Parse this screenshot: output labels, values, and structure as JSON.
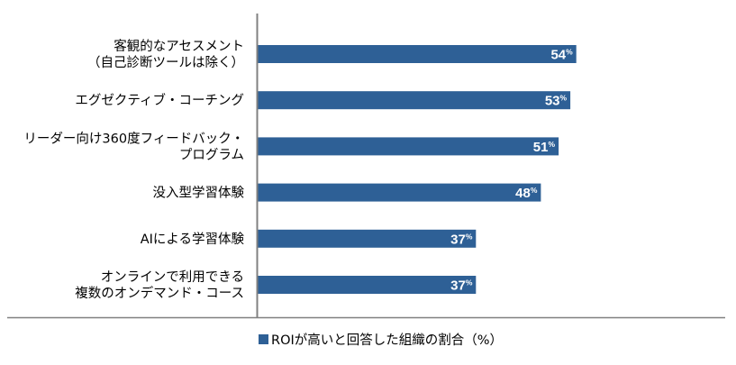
{
  "chart_data": {
    "type": "bar",
    "orientation": "horizontal",
    "categories": [
      [
        "客観的なアセスメント",
        "（自己診断ツールは除く）"
      ],
      [
        "エグゼクティブ・コーチング"
      ],
      [
        "リーダー向け360度フィードバック・",
        "プログラム"
      ],
      [
        "没入型学習体験"
      ],
      [
        "AIによる学習体験"
      ],
      [
        "オンラインで利用できる",
        "複数のオンデマンド・コース"
      ]
    ],
    "series": [
      {
        "name": "ROIが高いと回答した組織の割合（%）",
        "values": [
          54,
          53,
          51,
          48,
          37,
          37
        ]
      }
    ],
    "value_labels": [
      "54",
      "53",
      "51",
      "48",
      "37",
      "37"
    ],
    "value_unit": "%",
    "xlim": [
      0,
      100
    ],
    "grid": false,
    "legend_position": "bottom-center",
    "colors": {
      "bar": "#2E6096",
      "axis": "#808080",
      "label_text": "#000000",
      "value_text": "#ffffff"
    }
  }
}
